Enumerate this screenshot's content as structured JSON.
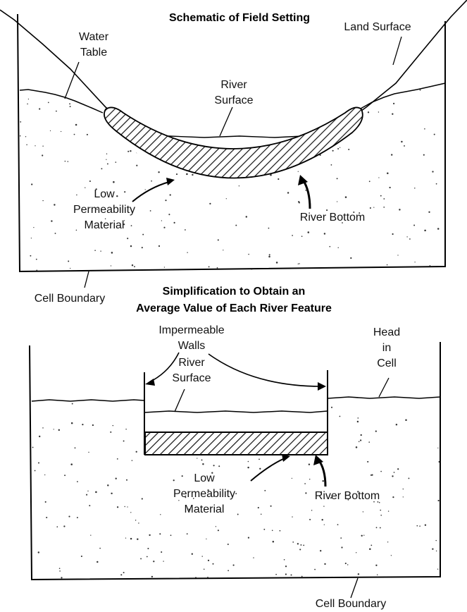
{
  "top": {
    "title": "Schematic of Field Setting",
    "labels": {
      "water_table": "Water\nTable",
      "land_surface": "Land Surface",
      "river_surface": "River\nSurface",
      "low_permeability": "Low\nPermeability\nMaterial",
      "river_bottom": "River Bottom",
      "cell_boundary": "Cell Boundary"
    }
  },
  "bottom": {
    "title": "Simplification to Obtain an\nAverage Value of Each River Feature",
    "labels": {
      "impermeable_walls": "Impermeable\nWalls",
      "river_surface": "River\nSurface",
      "head_in_cell": "Head\nin\nCell",
      "low_permeability": "Low\nPermeability\nMaterial",
      "river_bottom": "River Bottom",
      "cell_boundary": "Cell Boundary"
    }
  }
}
